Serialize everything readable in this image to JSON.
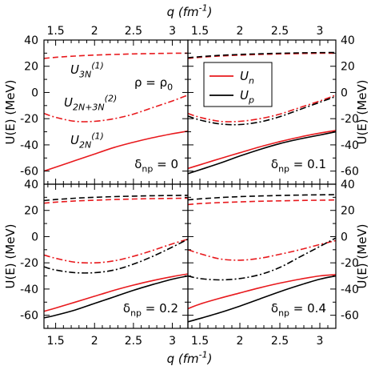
{
  "chart_data": {
    "type": "line",
    "layout": "2x2 panels, shared axes",
    "xlabel": "q (fm^-1)",
    "ylabel": "U(E) (MeV)",
    "xlim": [
      1.35,
      3.2
    ],
    "ylim": [
      -70,
      40
    ],
    "xticks": [
      1.5,
      2,
      2.5,
      3
    ],
    "xtick_labels": [
      "1.5",
      "2",
      "2.5",
      "3"
    ],
    "yticks": [
      -60,
      -40,
      -20,
      0,
      20,
      40
    ],
    "ytick_labels": [
      "-60",
      "-40",
      "-20",
      "0",
      "20",
      "40"
    ],
    "legend": {
      "placement": "top-left of top-right panel",
      "entries": [
        {
          "label": "U_n",
          "color": "#e8191d"
        },
        {
          "label": "U_p",
          "color": "#000000"
        }
      ]
    },
    "colors": {
      "neutron": "#e8191d",
      "proton": "#000000"
    },
    "curve_labels": {
      "three_body": "U_3N^(1)",
      "second_order": "U_2N+3N^(2)",
      "two_body": "U_2N^(1)"
    },
    "line_styles": {
      "three_body": "dashed",
      "second_order": "dash-dot",
      "two_body": "solid"
    },
    "density_label": "ρ = ρ_0",
    "x": [
      1.35,
      1.5,
      1.75,
      2.0,
      2.25,
      2.5,
      2.75,
      3.0,
      3.2
    ],
    "panels": [
      {
        "delta_label": "δ_np = 0",
        "series": [
          {
            "name": "U_n three_body",
            "values": [
              26,
              26.8,
              27.8,
              28.5,
              29,
              29.4,
              29.7,
              29.9,
              30
            ]
          },
          {
            "name": "U_n second_order",
            "values": [
              -16,
              -19,
              -22,
              -22,
              -20,
              -16.5,
              -11.5,
              -6.5,
              -2
            ]
          },
          {
            "name": "U_n two_body",
            "values": [
              -60,
              -57,
              -52,
              -47,
              -42,
              -38,
              -34.5,
              -31.5,
              -29.5
            ]
          }
        ]
      },
      {
        "delta_label": "δ_np = 0.1",
        "series": [
          {
            "name": "U_n three_body",
            "values": [
              26,
              26.8,
              27.8,
              28.5,
              29,
              29.4,
              29.7,
              29.9,
              30
            ]
          },
          {
            "name": "U_n second_order",
            "values": [
              -16,
              -19,
              -22,
              -22,
              -20,
              -16.5,
              -11.5,
              -6.5,
              -2
            ]
          },
          {
            "name": "U_n two_body",
            "values": [
              -58,
              -55.2,
              -50.5,
              -46,
              -41.5,
              -37.5,
              -34,
              -31,
              -29
            ]
          },
          {
            "name": "U_p three_body",
            "values": [
              26.5,
              27.3,
              28.3,
              29,
              29.5,
              29.9,
              30.2,
              30.4,
              30.5
            ]
          },
          {
            "name": "U_p second_order",
            "values": [
              -18,
              -21,
              -24,
              -24.5,
              -22.5,
              -18.5,
              -13,
              -7.5,
              -3
            ]
          },
          {
            "name": "U_p two_body",
            "values": [
              -62,
              -59,
              -54,
              -48.5,
              -43.5,
              -39,
              -35.5,
              -32.5,
              -30
            ]
          }
        ]
      },
      {
        "delta_label": "δ_np = 0.2",
        "series": [
          {
            "name": "U_n three_body",
            "values": [
              25.5,
              26.3,
              27.2,
              27.8,
              28.3,
              28.7,
              29,
              29.2,
              29.3
            ]
          },
          {
            "name": "U_n second_order",
            "values": [
              -14,
              -16.5,
              -19.5,
              -20,
              -18.5,
              -15,
              -10.5,
              -5.5,
              -2
            ]
          },
          {
            "name": "U_n two_body",
            "values": [
              -57,
              -54.5,
              -50,
              -45.5,
              -41,
              -37,
              -33.5,
              -30.5,
              -28.5
            ]
          },
          {
            "name": "U_p three_body",
            "values": [
              27.5,
              28.3,
              29.3,
              30,
              30.5,
              30.9,
              31.2,
              31.4,
              31.5
            ]
          },
          {
            "name": "U_p second_order",
            "values": [
              -23,
              -25.5,
              -27.5,
              -27.5,
              -25.5,
              -21,
              -15,
              -8,
              -2
            ]
          },
          {
            "name": "U_p two_body",
            "values": [
              -62,
              -60,
              -56,
              -51,
              -46,
              -41,
              -36.5,
              -32.5,
              -30
            ]
          }
        ]
      },
      {
        "delta_label": "δ_np = 0.4",
        "series": [
          {
            "name": "U_n three_body",
            "values": [
              24.5,
              25.2,
              26,
              26.5,
              27,
              27.3,
              27.6,
              27.8,
              28
            ]
          },
          {
            "name": "U_n second_order",
            "values": [
              -10,
              -13,
              -17,
              -18,
              -16.5,
              -13.5,
              -10,
              -6,
              -3
            ]
          },
          {
            "name": "U_n two_body",
            "values": [
              -55,
              -51.5,
              -47,
              -43,
              -39,
              -35.5,
              -32.5,
              -30,
              -29
            ]
          },
          {
            "name": "U_p three_body",
            "values": [
              28,
              28.8,
              29.8,
              30.5,
              31,
              31.4,
              31.7,
              31.9,
              32
            ]
          },
          {
            "name": "U_p second_order",
            "values": [
              -30,
              -32,
              -33,
              -32,
              -29,
              -23.5,
              -15.5,
              -7.5,
              -1
            ]
          },
          {
            "name": "U_p two_body",
            "values": [
              -65,
              -62.5,
              -58,
              -53,
              -47.5,
              -42,
              -37,
              -32.5,
              -30
            ]
          }
        ]
      }
    ]
  }
}
